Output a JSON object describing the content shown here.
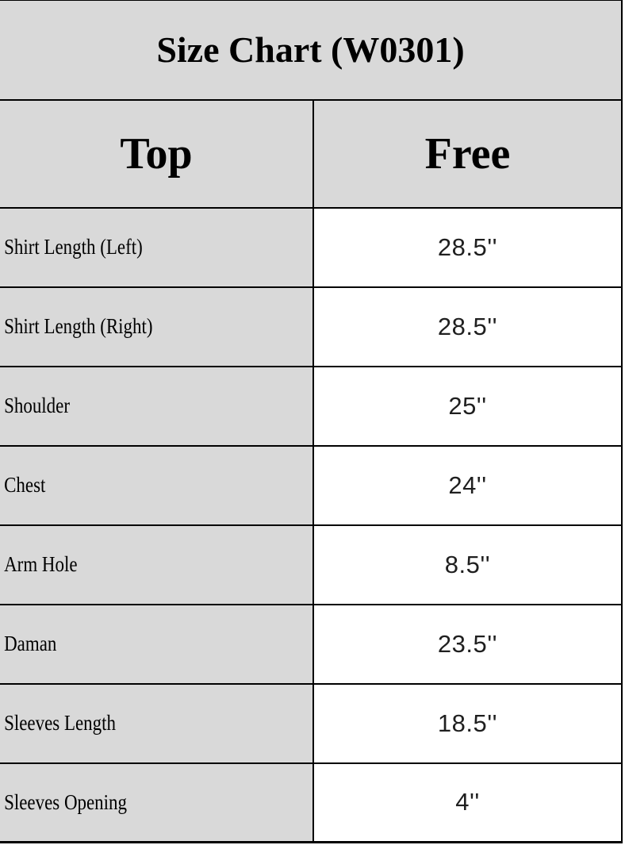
{
  "chart_data": {
    "type": "table",
    "title": "Size Chart (W0301)",
    "columns": [
      "Top",
      "Free"
    ],
    "rows": [
      [
        "Shirt Length (Left)",
        "28.5''"
      ],
      [
        "Shirt Length (Right)",
        "28.5''"
      ],
      [
        "Shoulder",
        "25''"
      ],
      [
        "Chest",
        "24''"
      ],
      [
        "Arm Hole",
        "8.5''"
      ],
      [
        "Daman",
        "23.5''"
      ],
      [
        "Sleeves Length",
        "18.5''"
      ],
      [
        "Sleeves Opening",
        "4''"
      ]
    ]
  },
  "colors": {
    "header_bg": "#d9d9d9",
    "label_bg": "#d9d9d9",
    "value_bg": "#ffffff",
    "border": "#000000",
    "text": "#000000"
  }
}
